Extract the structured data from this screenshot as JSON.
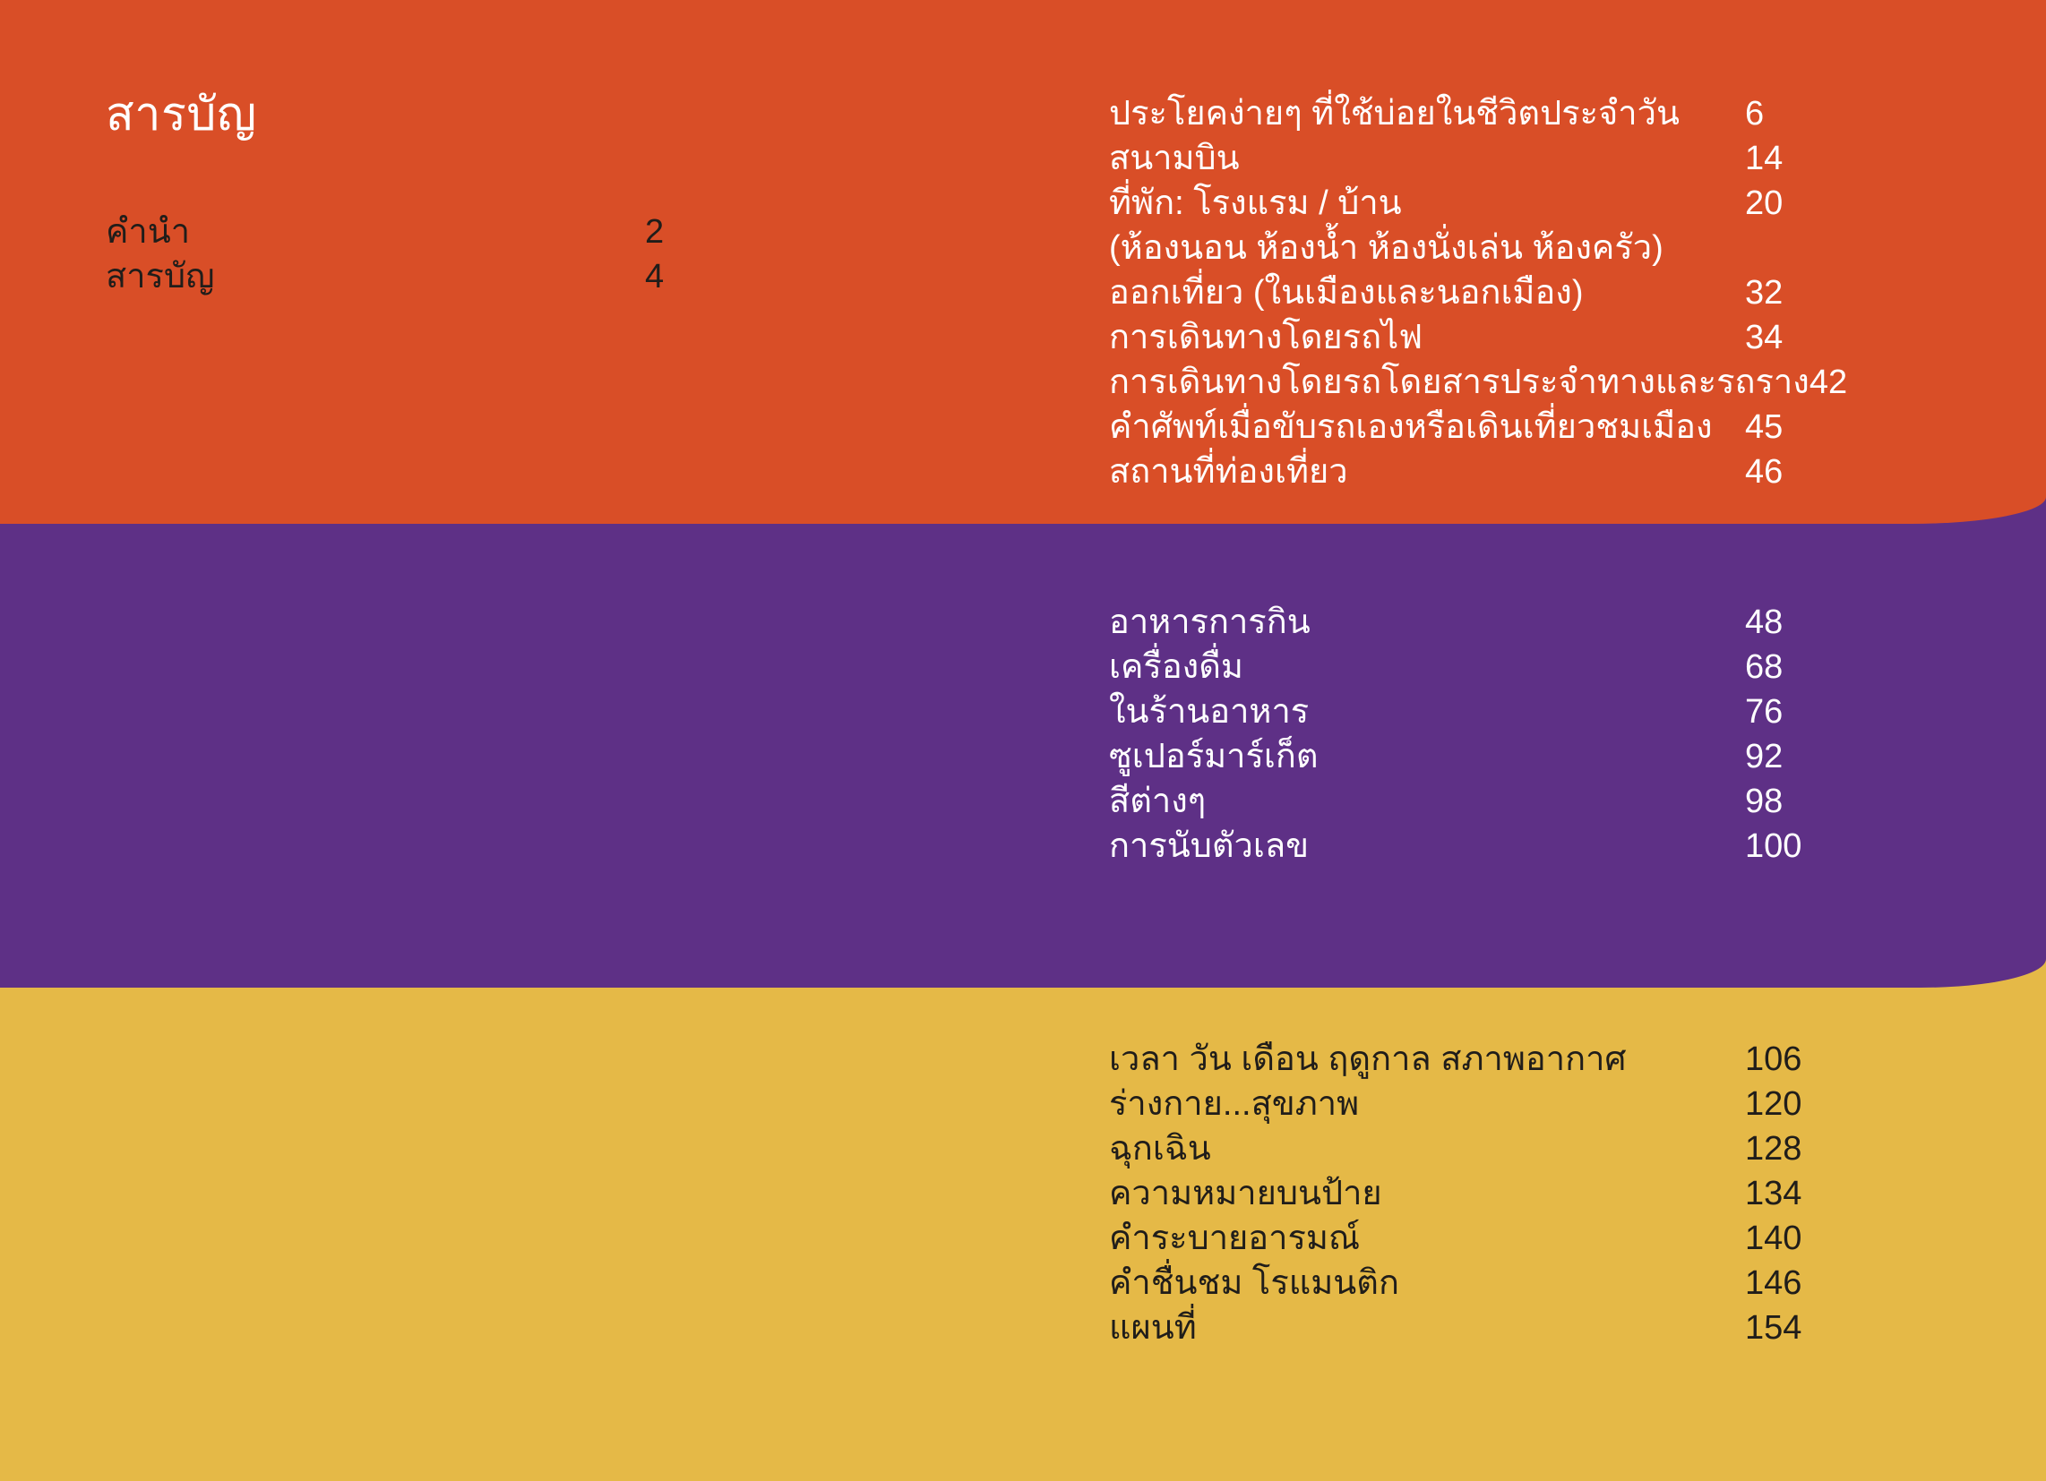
{
  "page": {
    "title": "สารบัญ",
    "colors": {
      "orange": "#D94E27",
      "purple": "#5E3086",
      "yellow": "#E5B947",
      "text_dark": "#201D1A",
      "text_light": "#FFFFFF"
    }
  },
  "front_matter": {
    "items": [
      {
        "label": "คำนำ",
        "page": "2"
      },
      {
        "label": "สารบัญ",
        "page": "4"
      }
    ]
  },
  "sections": {
    "orange": {
      "items": [
        {
          "label": "ประโยคง่ายๆ ที่ใช้บ่อยในชีวิตประจำวัน",
          "page": "6"
        },
        {
          "label": "สนามบิน",
          "page": "14"
        },
        {
          "label": "ที่พัก: โรงแรม / บ้าน",
          "page": "20"
        },
        {
          "label": "(ห้องนอน ห้องน้ำ ห้องนั่งเล่น ห้องครัว)",
          "page": ""
        },
        {
          "label": "ออกเที่ยว (ในเมืองและนอกเมือง)",
          "page": "32"
        },
        {
          "label": "การเดินทางโดยรถไฟ",
          "page": "34"
        },
        {
          "label": "การเดินทางโดยรถโดยสารประจำทางและรถราง",
          "page": "42"
        },
        {
          "label": "คำศัพท์เมื่อขับรถเองหรือเดินเที่ยวชมเมือง",
          "page": "45"
        },
        {
          "label": "สถานที่ท่องเที่ยว",
          "page": "46"
        }
      ]
    },
    "purple": {
      "items": [
        {
          "label": "อาหารการกิน",
          "page": "48"
        },
        {
          "label": "เครื่องดื่ม",
          "page": "68"
        },
        {
          "label": "ในร้านอาหาร",
          "page": "76"
        },
        {
          "label": "ซูเปอร์มาร์เก็ต",
          "page": "92"
        },
        {
          "label": "สีต่างๆ",
          "page": "98"
        },
        {
          "label": "การนับตัวเลข",
          "page": "100"
        }
      ]
    },
    "yellow": {
      "items": [
        {
          "label": "เวลา วัน เดือน ฤดูกาล สภาพอากาศ",
          "page": "106"
        },
        {
          "label": "ร่างกาย...สุขภาพ",
          "page": "120"
        },
        {
          "label": "ฉุกเฉิน",
          "page": "128"
        },
        {
          "label": "ความหมายบนป้าย",
          "page": "134"
        },
        {
          "label": "คำระบายอารมณ์",
          "page": "140"
        },
        {
          "label": "คำชื่นชม โรแมนติก",
          "page": "146"
        },
        {
          "label": "แผนที่",
          "page": "154"
        }
      ]
    }
  }
}
